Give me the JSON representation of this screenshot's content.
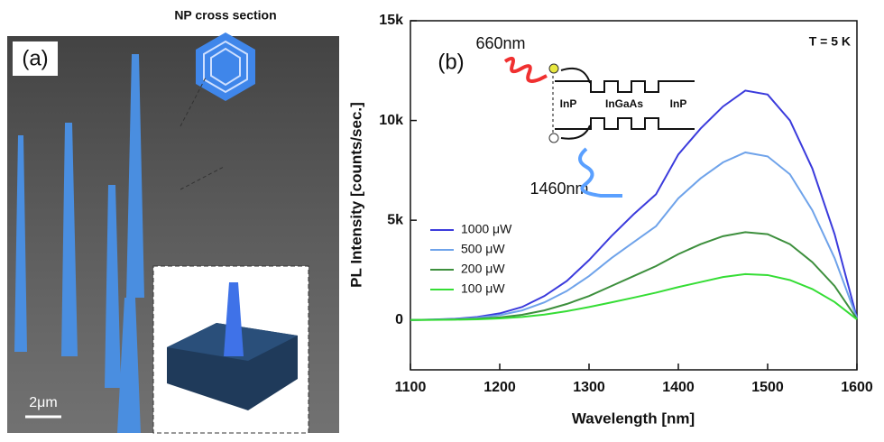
{
  "panel_a": {
    "label": "(a)",
    "inset_title": "NP cross section",
    "scale_bar": "2μm"
  },
  "chart_data": {
    "type": "line",
    "panel_label": "(b)",
    "temperature": "T = 5 K",
    "excitation_label": "660nm",
    "emission_label": "1460nm",
    "layers": [
      "InP",
      "InGaAs",
      "InP"
    ],
    "xlabel": "Wavelength [nm]",
    "ylabel": "PL Intensity [counts/sec.]",
    "xlim": [
      1100,
      1600
    ],
    "ylim": [
      -2500,
      15000
    ],
    "xticks": [
      1100,
      1200,
      1300,
      1400,
      1500,
      1600
    ],
    "yticks": [
      0,
      {
        "value": 5000,
        "label": "5k"
      },
      {
        "value": 10000,
        "label": "10k"
      },
      {
        "value": 15000,
        "label": "15k"
      }
    ],
    "x": [
      1100,
      1125,
      1150,
      1175,
      1200,
      1225,
      1250,
      1275,
      1300,
      1325,
      1350,
      1375,
      1400,
      1425,
      1450,
      1475,
      1500,
      1525,
      1550,
      1575,
      1600
    ],
    "series": [
      {
        "name": "1000 μW",
        "color": "#3b3bdc",
        "values": [
          0,
          20,
          60,
          150,
          330,
          650,
          1200,
          1950,
          3000,
          4200,
          5300,
          6300,
          8300,
          9600,
          10700,
          11500,
          11300,
          10000,
          7600,
          4300,
          100
        ]
      },
      {
        "name": "500 μW",
        "color": "#6fa3ea",
        "values": [
          0,
          15,
          45,
          110,
          240,
          480,
          880,
          1450,
          2200,
          3100,
          3900,
          4700,
          6100,
          7100,
          7900,
          8400,
          8200,
          7300,
          5500,
          3100,
          80
        ]
      },
      {
        "name": "200 μW",
        "color": "#3d8f3d",
        "values": [
          0,
          10,
          25,
          60,
          130,
          260,
          480,
          800,
          1200,
          1700,
          2200,
          2700,
          3300,
          3800,
          4200,
          4400,
          4300,
          3800,
          2900,
          1700,
          50
        ]
      },
      {
        "name": "100 μW",
        "color": "#35dd35",
        "values": [
          0,
          5,
          15,
          35,
          75,
          150,
          270,
          440,
          650,
          880,
          1120,
          1370,
          1650,
          1900,
          2150,
          2300,
          2250,
          2000,
          1550,
          900,
          30
        ]
      }
    ],
    "legend": "left"
  }
}
